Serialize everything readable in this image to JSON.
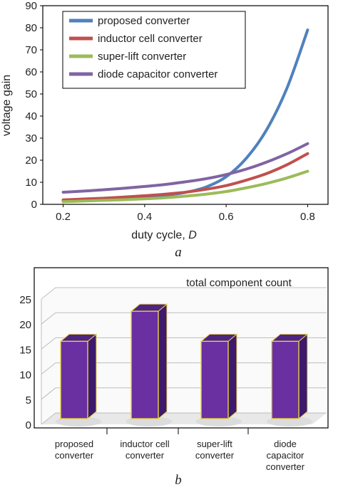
{
  "chart_data": [
    {
      "type": "line",
      "label": "a",
      "xlabel": "duty cycle,",
      "xlabel_var": "D",
      "ylabel": "voltage gain",
      "xlim": [
        0.15,
        0.85
      ],
      "ylim": [
        0,
        90
      ],
      "x_ticks": [
        "0.2",
        "0.4",
        "0.6",
        "0.8"
      ],
      "y_ticks": [
        "0",
        "10",
        "20",
        "30",
        "40",
        "50",
        "60",
        "70",
        "80",
        "90"
      ],
      "legend_position": "top-center",
      "series": [
        {
          "name": "proposed converter",
          "color": "#4f81bd",
          "x": [
            0.2,
            0.25,
            0.3,
            0.35,
            0.4,
            0.45,
            0.5,
            0.55,
            0.6,
            0.65,
            0.7,
            0.75,
            0.8
          ],
          "y": [
            1.5,
            1.9,
            2.3,
            2.8,
            3.3,
            4.1,
            5.4,
            7.8,
            12.5,
            21,
            34,
            53,
            79
          ]
        },
        {
          "name": "inductor cell converter",
          "color": "#c0504d",
          "x": [
            0.2,
            0.25,
            0.3,
            0.35,
            0.4,
            0.45,
            0.5,
            0.55,
            0.6,
            0.65,
            0.7,
            0.75,
            0.8
          ],
          "y": [
            2,
            2.4,
            2.8,
            3.3,
            3.9,
            4.6,
            5.5,
            6.8,
            8.5,
            11,
            14,
            18,
            23
          ]
        },
        {
          "name": "super-lift converter",
          "color": "#9bbb59",
          "x": [
            0.2,
            0.25,
            0.3,
            0.35,
            0.4,
            0.45,
            0.5,
            0.55,
            0.6,
            0.65,
            0.7,
            0.75,
            0.8
          ],
          "y": [
            1.2,
            1.5,
            1.8,
            2.1,
            2.5,
            3,
            3.7,
            4.6,
            5.8,
            7.5,
            9.5,
            12,
            15
          ]
        },
        {
          "name": "diode capacitor converter",
          "color": "#8064a2",
          "x": [
            0.2,
            0.25,
            0.3,
            0.35,
            0.4,
            0.45,
            0.5,
            0.55,
            0.6,
            0.65,
            0.7,
            0.75,
            0.8
          ],
          "y": [
            5.5,
            6,
            6.6,
            7.3,
            8.1,
            9,
            10.2,
            11.6,
            13.5,
            16,
            19.2,
            23,
            27.5
          ]
        }
      ]
    },
    {
      "type": "bar",
      "label": "b",
      "title": "total component count",
      "ylim": [
        0,
        25
      ],
      "y_ticks": [
        "0",
        "5",
        "10",
        "15",
        "20",
        "25"
      ],
      "categories": [
        [
          "proposed",
          "converter"
        ],
        [
          "inductor cell",
          "converter"
        ],
        [
          "super-lift",
          "converter"
        ],
        [
          "diode",
          "capacitor",
          "converter"
        ]
      ],
      "values": [
        16,
        22,
        16,
        16
      ],
      "bar_color": "#6a2fa0",
      "bar_outline": "#e6d34a"
    }
  ]
}
